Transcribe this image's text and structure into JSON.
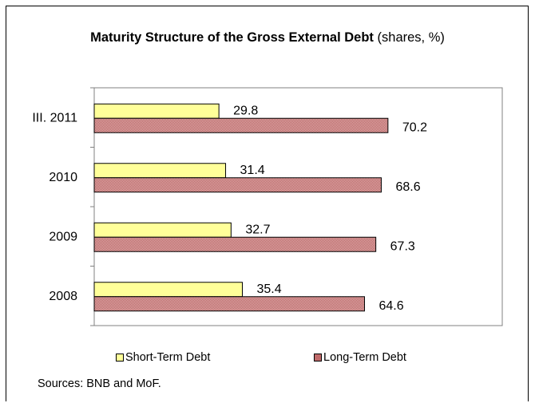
{
  "chart_data": {
    "type": "bar",
    "orientation": "horizontal",
    "title_bold": "Maturity Structure of the Gross External Debt",
    "title_rest": " (shares, %)",
    "categories": [
      "III. 2011",
      "2010",
      "2009",
      "2008"
    ],
    "series": [
      {
        "name": "Short-Term Debt",
        "values": [
          29.8,
          31.4,
          32.7,
          35.4
        ],
        "color": "#ffff99"
      },
      {
        "name": "Long-Term Debt",
        "values": [
          70.2,
          68.6,
          67.3,
          64.6
        ],
        "color": "#cc8c8c"
      }
    ],
    "xlim": [
      0,
      100
    ],
    "grid": false,
    "legend_position": "bottom"
  },
  "source_note": "Sources: BNB and MoF."
}
